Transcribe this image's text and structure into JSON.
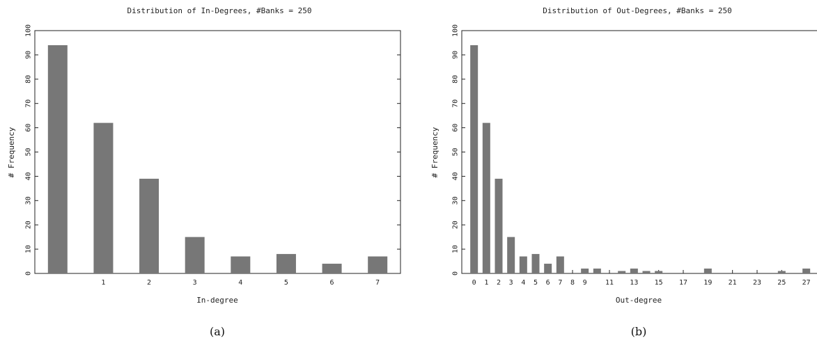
{
  "chart_data": [
    {
      "type": "bar",
      "title": "Distribution of In-Degrees, #Banks = 250",
      "xlabel": "In-degree",
      "ylabel": "# Frequency",
      "caption": "(a)",
      "ylim": [
        0,
        100
      ],
      "yticks": [
        0,
        10,
        20,
        30,
        40,
        50,
        60,
        70,
        80,
        90,
        100
      ],
      "xlim": [
        -0.5,
        7.5
      ],
      "xtick_values": [
        1,
        2,
        3,
        4,
        5,
        6,
        7
      ],
      "categories": [
        0,
        1,
        2,
        3,
        4,
        5,
        6,
        7
      ],
      "values": [
        94,
        62,
        39,
        15,
        7,
        8,
        4,
        7
      ],
      "bar_color": "#777777",
      "grid": false
    },
    {
      "type": "bar",
      "title": "Distribution of Out-Degrees, #Banks = 250",
      "xlabel": "Out-degree",
      "ylabel": "# Frequency",
      "caption": "(b)",
      "ylim": [
        0,
        100
      ],
      "yticks": [
        0,
        10,
        20,
        30,
        40,
        50,
        60,
        70,
        80,
        90,
        100
      ],
      "xlim": [
        -1,
        29
      ],
      "xtick_values": [
        0,
        1,
        2,
        3,
        4,
        5,
        6,
        7,
        8,
        9,
        11,
        13,
        15,
        17,
        19,
        21,
        23,
        25,
        27
      ],
      "categories": [
        0,
        1,
        2,
        3,
        4,
        5,
        6,
        7,
        8,
        9,
        10,
        11,
        12,
        13,
        14,
        15,
        16,
        17,
        18,
        19,
        20,
        21,
        22,
        23,
        24,
        25,
        26,
        27
      ],
      "values": [
        94,
        62,
        39,
        15,
        7,
        8,
        4,
        7,
        0,
        2,
        2,
        0,
        1,
        2,
        1,
        1,
        0,
        0,
        0,
        2,
        0,
        0,
        0,
        0,
        0,
        1,
        0,
        2
      ],
      "bar_color": "#777777",
      "grid": false
    }
  ]
}
